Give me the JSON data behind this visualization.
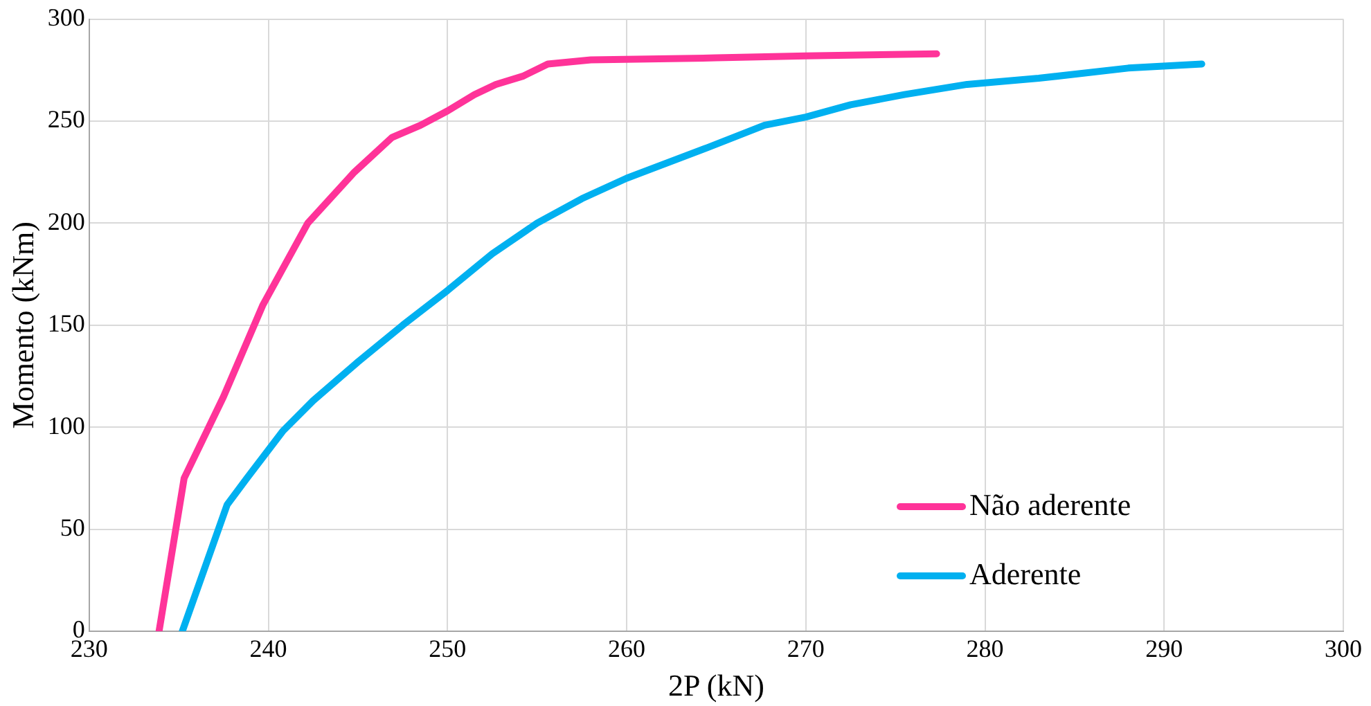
{
  "chart_data": {
    "type": "line",
    "xlabel": "2P (kN)",
    "ylabel": "Momento (kNm)",
    "xlim": [
      230,
      300
    ],
    "xticks": [
      230,
      240,
      250,
      260,
      270,
      280,
      290,
      300
    ],
    "ylim": [
      0,
      300
    ],
    "yticks": [
      0,
      50,
      100,
      150,
      200,
      250,
      300
    ],
    "grid": true,
    "legend": "bottom right",
    "marker": "none",
    "line_style": "solid",
    "series": [
      {
        "name": "Não aderente",
        "color": "#ff3399",
        "x": [
          233.9,
          235.3,
          237.5,
          239.7,
          242.2,
          244.8,
          246.9,
          248.5,
          250,
          251.5,
          252.7,
          254.2,
          255.6,
          258,
          265,
          270,
          277.3
        ],
        "values": [
          0,
          75,
          115,
          160,
          200,
          225,
          242,
          248,
          255,
          263,
          268,
          272,
          278,
          280,
          281,
          282,
          283
        ]
      },
      {
        "name": "Aderente",
        "color": "#00b0f0",
        "x": [
          235.2,
          237.7,
          238.8,
          240.8,
          242.5,
          245,
          247.5,
          250,
          252.5,
          255,
          257.5,
          260,
          264.5,
          267.7,
          270,
          272.5,
          275.5,
          279,
          283,
          288,
          292.1
        ],
        "values": [
          0,
          62,
          75,
          98,
          113,
          132,
          150,
          167,
          185,
          200,
          212,
          222,
          237,
          248,
          252,
          258,
          263,
          268,
          271,
          276,
          278
        ]
      }
    ]
  }
}
